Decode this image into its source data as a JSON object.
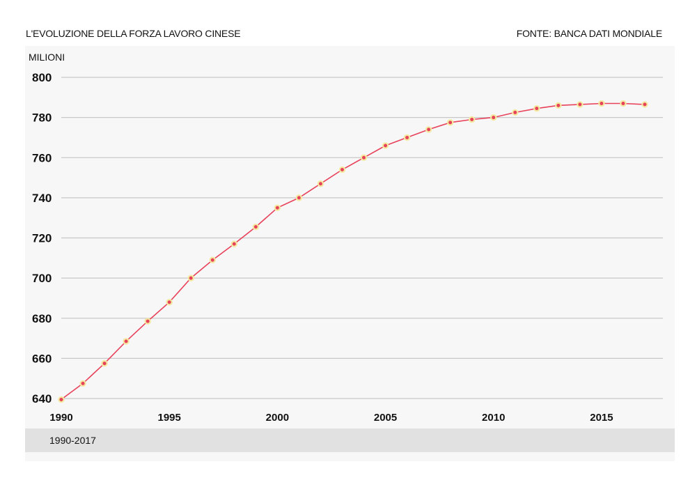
{
  "header": {
    "title": "L'EVOLUZIONE DELLA FORZA LAVORO CINESE",
    "source": "FONTE: BANCA DATI MONDIALE"
  },
  "footer": {
    "range_label": "1990-2017"
  },
  "chart_data": {
    "type": "line",
    "ylabel": "MILIONI",
    "xlabel": "",
    "ylim": [
      640,
      800
    ],
    "xlim": [
      1990,
      2017
    ],
    "yticks": [
      640,
      660,
      680,
      700,
      720,
      740,
      760,
      780,
      800
    ],
    "xticks": [
      1990,
      1995,
      2000,
      2005,
      2010,
      2015
    ],
    "grid": true,
    "colors": {
      "line": "#e8415a",
      "marker_fill": "#e8415a",
      "marker_ring": "#f3e9a0",
      "grid": "#c8c8c8"
    },
    "x": [
      1990,
      1991,
      1992,
      1993,
      1994,
      1995,
      1996,
      1997,
      1998,
      1999,
      2000,
      2001,
      2002,
      2003,
      2004,
      2005,
      2006,
      2007,
      2008,
      2009,
      2010,
      2011,
      2012,
      2013,
      2014,
      2015,
      2016,
      2017
    ],
    "series": [
      {
        "values": [
          639.5,
          647.5,
          657.5,
          668.5,
          678.5,
          688,
          700,
          709,
          717,
          725.5,
          735,
          740,
          747,
          754,
          760,
          766,
          770,
          774,
          777.5,
          779,
          780,
          782.5,
          784.5,
          786,
          786.5,
          787,
          787,
          786.5
        ]
      }
    ]
  }
}
